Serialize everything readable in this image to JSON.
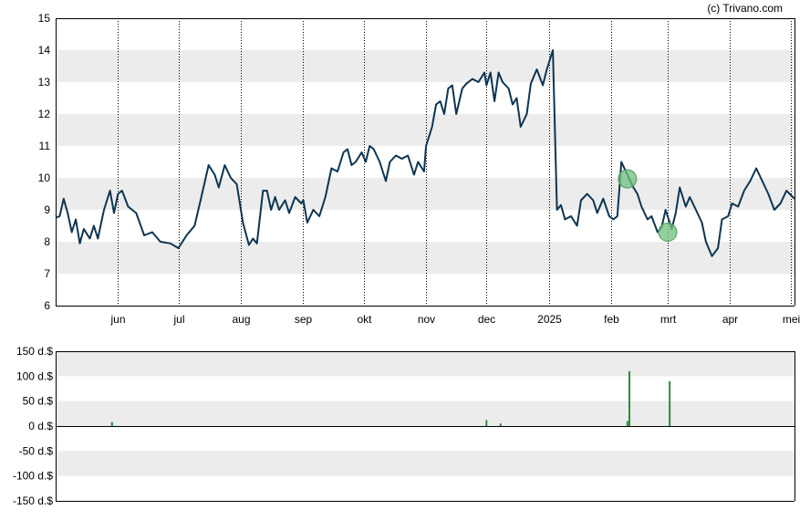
{
  "credit": "(c) Trivano.com",
  "colors": {
    "price_line": "#0d3552",
    "band": "#ececec",
    "volume_bar": "#2e8b3e",
    "marker": "#6fbf7f",
    "grid_vertical": "#000000"
  },
  "chart_data": [
    {
      "type": "line",
      "title": "",
      "xlabel": "",
      "ylabel": "",
      "ylim": [
        6,
        15
      ],
      "y_ticks": [
        "6",
        "7",
        "8",
        "9",
        "10",
        "11",
        "12",
        "13",
        "14",
        "15"
      ],
      "y_band_ranges": [
        [
          7,
          8
        ],
        [
          9,
          10
        ],
        [
          11,
          12
        ],
        [
          13,
          14
        ]
      ],
      "x_ticks": [
        "jun",
        "jul",
        "aug",
        "sep",
        "okt",
        "nov",
        "dec",
        "2025",
        "feb",
        "mrt",
        "apr",
        "mei"
      ],
      "x_tick_dates": [
        "2024-06-01",
        "2024-07-01",
        "2024-08-01",
        "2024-09-01",
        "2024-10-01",
        "2024-11-01",
        "2024-12-01",
        "2025-01-01",
        "2025-02-01",
        "2025-03-01",
        "2025-04-01",
        "2025-05-01"
      ],
      "x_range": [
        "2024-05-01",
        "2025-05-03"
      ],
      "vertical_grid": "dotted at month ticks",
      "series": [
        {
          "values": [
            [
              "2024-05-01",
              8.75
            ],
            [
              "2024-05-03",
              8.8
            ],
            [
              "2024-05-05",
              9.35
            ],
            [
              "2024-05-07",
              8.9
            ],
            [
              "2024-05-09",
              8.3
            ],
            [
              "2024-05-11",
              8.7
            ],
            [
              "2024-05-13",
              7.95
            ],
            [
              "2024-05-15",
              8.4
            ],
            [
              "2024-05-18",
              8.1
            ],
            [
              "2024-05-20",
              8.5
            ],
            [
              "2024-05-22",
              8.1
            ],
            [
              "2024-05-25",
              9.0
            ],
            [
              "2024-05-28",
              9.6
            ],
            [
              "2024-05-30",
              8.9
            ],
            [
              "2024-06-01",
              9.5
            ],
            [
              "2024-06-03",
              9.6
            ],
            [
              "2024-06-06",
              9.1
            ],
            [
              "2024-06-10",
              8.9
            ],
            [
              "2024-06-14",
              8.2
            ],
            [
              "2024-06-18",
              8.3
            ],
            [
              "2024-06-22",
              8.0
            ],
            [
              "2024-06-27",
              7.95
            ],
            [
              "2024-07-01",
              7.8
            ],
            [
              "2024-07-05",
              8.2
            ],
            [
              "2024-07-09",
              8.5
            ],
            [
              "2024-07-12",
              9.3
            ],
            [
              "2024-07-16",
              10.4
            ],
            [
              "2024-07-19",
              10.1
            ],
            [
              "2024-07-21",
              9.7
            ],
            [
              "2024-07-24",
              10.4
            ],
            [
              "2024-07-27",
              10.0
            ],
            [
              "2024-07-30",
              9.8
            ],
            [
              "2024-08-02",
              8.6
            ],
            [
              "2024-08-05",
              7.9
            ],
            [
              "2024-08-07",
              8.1
            ],
            [
              "2024-08-09",
              7.95
            ],
            [
              "2024-08-12",
              9.6
            ],
            [
              "2024-08-14",
              9.6
            ],
            [
              "2024-08-16",
              9.0
            ],
            [
              "2024-08-18",
              9.4
            ],
            [
              "2024-08-20",
              9.0
            ],
            [
              "2024-08-23",
              9.3
            ],
            [
              "2024-08-25",
              8.9
            ],
            [
              "2024-08-28",
              9.4
            ],
            [
              "2024-08-31",
              9.2
            ],
            [
              "2024-09-01",
              9.3
            ],
            [
              "2024-09-03",
              8.6
            ],
            [
              "2024-09-06",
              9.0
            ],
            [
              "2024-09-09",
              8.8
            ],
            [
              "2024-09-12",
              9.4
            ],
            [
              "2024-09-15",
              10.3
            ],
            [
              "2024-09-18",
              10.2
            ],
            [
              "2024-09-21",
              10.8
            ],
            [
              "2024-09-23",
              10.9
            ],
            [
              "2024-09-25",
              10.4
            ],
            [
              "2024-09-27",
              10.5
            ],
            [
              "2024-09-30",
              10.8
            ],
            [
              "2024-10-02",
              10.5
            ],
            [
              "2024-10-04",
              11.0
            ],
            [
              "2024-10-06",
              10.9
            ],
            [
              "2024-10-09",
              10.5
            ],
            [
              "2024-10-12",
              9.9
            ],
            [
              "2024-10-14",
              10.5
            ],
            [
              "2024-10-17",
              10.7
            ],
            [
              "2024-10-20",
              10.6
            ],
            [
              "2024-10-23",
              10.7
            ],
            [
              "2024-10-26",
              10.1
            ],
            [
              "2024-10-28",
              10.5
            ],
            [
              "2024-10-31",
              10.2
            ],
            [
              "2024-11-01",
              11.0
            ],
            [
              "2024-11-04",
              11.6
            ],
            [
              "2024-11-06",
              12.3
            ],
            [
              "2024-11-08",
              12.4
            ],
            [
              "2024-11-10",
              12.0
            ],
            [
              "2024-11-12",
              12.8
            ],
            [
              "2024-11-14",
              12.9
            ],
            [
              "2024-11-16",
              12.0
            ],
            [
              "2024-11-19",
              12.8
            ],
            [
              "2024-11-21",
              12.95
            ],
            [
              "2024-11-24",
              13.1
            ],
            [
              "2024-11-27",
              13.0
            ],
            [
              "2024-11-30",
              13.3
            ],
            [
              "2024-12-01",
              12.9
            ],
            [
              "2024-12-03",
              13.3
            ],
            [
              "2024-12-05",
              12.4
            ],
            [
              "2024-12-07",
              13.3
            ],
            [
              "2024-12-09",
              13.0
            ],
            [
              "2024-12-12",
              12.8
            ],
            [
              "2024-12-14",
              12.3
            ],
            [
              "2024-12-16",
              12.5
            ],
            [
              "2024-12-18",
              11.6
            ],
            [
              "2024-12-21",
              12.0
            ],
            [
              "2024-12-23",
              12.95
            ],
            [
              "2024-12-26",
              13.4
            ],
            [
              "2024-12-29",
              12.9
            ],
            [
              "2024-12-31",
              13.4
            ],
            [
              "2025-01-03",
              14.0
            ],
            [
              "2025-01-05",
              9.0
            ],
            [
              "2025-01-07",
              9.15
            ],
            [
              "2025-01-09",
              8.7
            ],
            [
              "2025-01-12",
              8.8
            ],
            [
              "2025-01-15",
              8.5
            ],
            [
              "2025-01-17",
              9.3
            ],
            [
              "2025-01-20",
              9.5
            ],
            [
              "2025-01-23",
              9.3
            ],
            [
              "2025-01-25",
              8.9
            ],
            [
              "2025-01-28",
              9.35
            ],
            [
              "2025-01-31",
              8.8
            ],
            [
              "2025-02-02",
              8.7
            ],
            [
              "2025-02-04",
              8.8
            ],
            [
              "2025-02-06",
              10.5
            ],
            [
              "2025-02-09",
              10.1
            ],
            [
              "2025-02-12",
              9.7
            ],
            [
              "2025-02-14",
              9.5
            ],
            [
              "2025-02-16",
              9.1
            ],
            [
              "2025-02-19",
              8.7
            ],
            [
              "2025-02-21",
              8.8
            ],
            [
              "2025-02-24",
              8.3
            ],
            [
              "2025-02-26",
              8.45
            ],
            [
              "2025-02-28",
              9.0
            ],
            [
              "2025-03-03",
              8.4
            ],
            [
              "2025-03-05",
              8.9
            ],
            [
              "2025-03-07",
              9.7
            ],
            [
              "2025-03-10",
              9.1
            ],
            [
              "2025-03-12",
              9.4
            ],
            [
              "2025-03-15",
              9.0
            ],
            [
              "2025-03-18",
              8.6
            ],
            [
              "2025-03-20",
              8.0
            ],
            [
              "2025-03-23",
              7.55
            ],
            [
              "2025-03-26",
              7.8
            ],
            [
              "2025-03-28",
              8.7
            ],
            [
              "2025-03-31",
              8.8
            ],
            [
              "2025-04-02",
              9.2
            ],
            [
              "2025-04-05",
              9.1
            ],
            [
              "2025-04-08",
              9.6
            ],
            [
              "2025-04-11",
              9.9
            ],
            [
              "2025-04-14",
              10.3
            ],
            [
              "2025-04-17",
              9.9
            ],
            [
              "2025-04-20",
              9.5
            ],
            [
              "2025-04-23",
              9.0
            ],
            [
              "2025-04-26",
              9.2
            ],
            [
              "2025-04-29",
              9.6
            ],
            [
              "2025-05-03",
              9.35
            ]
          ]
        }
      ],
      "markers": [
        {
          "x": "2025-02-09",
          "y": 9.97
        },
        {
          "x": "2025-03-01",
          "y": 8.3
        }
      ]
    },
    {
      "type": "bar",
      "title": "",
      "xlabel": "",
      "ylabel": "",
      "ylim": [
        -150,
        150
      ],
      "y_ticks": [
        "150 d.$",
        "100 d.$",
        "50 d.$",
        "0 d.$",
        "-50 d.$",
        "-100 d.$",
        "-150 d.$"
      ],
      "y_band_ranges": [
        [
          100,
          150
        ],
        [
          0,
          50
        ],
        [
          -100,
          -50
        ]
      ],
      "x_range": [
        "2024-05-01",
        "2025-05-03"
      ],
      "values": [
        [
          "2024-05-29",
          8
        ],
        [
          "2024-12-01",
          12
        ],
        [
          "2024-12-08",
          5
        ],
        [
          "2025-02-09",
          10
        ],
        [
          "2025-02-10",
          110
        ],
        [
          "2025-03-02",
          90
        ]
      ]
    }
  ]
}
